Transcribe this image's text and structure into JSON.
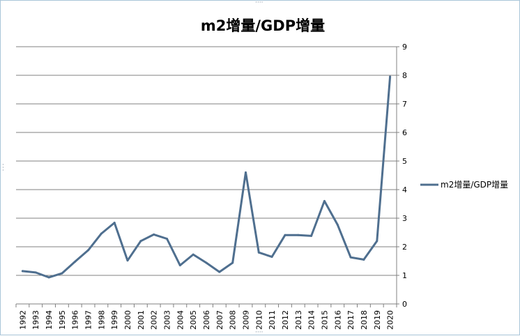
{
  "chart_data": {
    "type": "line",
    "title": "m2增量/GDP增量",
    "xlabel": "",
    "ylabel": "",
    "ylim": [
      0,
      9
    ],
    "y_ticks": [
      0,
      1,
      2,
      3,
      4,
      5,
      6,
      7,
      8,
      9
    ],
    "y_axis_side": "right",
    "grid": true,
    "legend_position": "right",
    "categories": [
      "1992",
      "1993",
      "1994",
      "1995",
      "1996",
      "1997",
      "1998",
      "1999",
      "2000",
      "2001",
      "2002",
      "2003",
      "2004",
      "2005",
      "2006",
      "2007",
      "2008",
      "2009",
      "2010",
      "2011",
      "2012",
      "2013",
      "2014",
      "2015",
      "2016",
      "2017",
      "2018",
      "2019",
      "2020"
    ],
    "series": [
      {
        "name": "m2增量/GDP增量",
        "color": "#4f6f8f",
        "values": [
          1.15,
          1.1,
          0.93,
          1.07,
          1.48,
          1.88,
          2.46,
          2.84,
          1.52,
          2.2,
          2.43,
          2.28,
          1.35,
          1.73,
          1.44,
          1.12,
          1.44,
          4.6,
          1.8,
          1.65,
          2.41,
          2.41,
          2.38,
          3.6,
          2.77,
          1.63,
          1.55,
          2.2,
          7.95
        ]
      }
    ]
  },
  "colors": {
    "gridline": "#808080",
    "axis": "#808080",
    "frame_border": "#a9c5d8"
  }
}
